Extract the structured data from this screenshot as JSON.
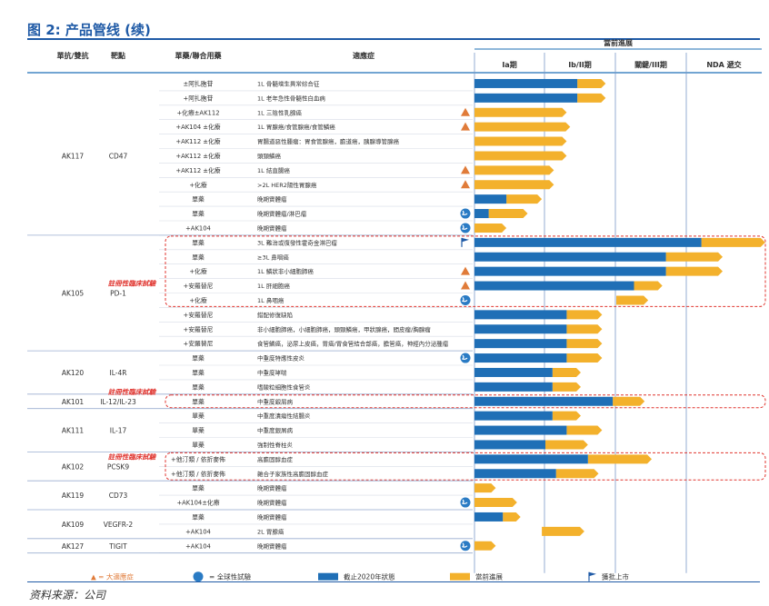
{
  "title": "图 2: 产品管线 (续)",
  "source": "资料来源：公司",
  "headers": {
    "antibody": "單抗/雙抗",
    "target": "靶點",
    "combo": "單藥/聯合用藥",
    "indication": "適應症",
    "progress": "當前進展",
    "phases": [
      "Ia期",
      "Ib/II期",
      "關鍵/III期",
      "NDA 遞交"
    ]
  },
  "highlight_label": "註冊性臨床試驗",
  "legend": {
    "fast_track": "▲ = 大適應症",
    "global": "= 全球性試驗",
    "status_2020": "截止2020年狀態",
    "current": "當前進展",
    "approved": "獲批上市"
  },
  "colors": {
    "blue": "#1f6fb6",
    "orange": "#f3b12c",
    "tri": "#e07b39",
    "highlight": "#e0352f"
  },
  "groups": [
    {
      "antibody": "AK117",
      "target": "CD47",
      "rows": [
        {
          "combo": "±阿扎胞苷",
          "ind": "1L 骨髓增生異常綜合征",
          "blue": 1.45,
          "orange": 1.85
        },
        {
          "combo": "+阿扎胞苷",
          "ind": "1L 老年急性骨髓性白血病",
          "blue": 1.45,
          "orange": 1.85
        },
        {
          "combo": "+化療±AK112",
          "ind": "1L 三陰性乳腺癌",
          "blue": 0,
          "orange": 1.3,
          "tri": true
        },
        {
          "combo": "+AK104 ±化療",
          "ind": "1L 胃腺癌/食管腺癌/食管鱗癌",
          "blue": 0,
          "orange": 1.35,
          "tri": true
        },
        {
          "combo": "+AK112 ±化療",
          "ind": "胃腸道惡性腫瘤：胃食管腺癌，膽道癌，胰腺導管腺癌",
          "blue": 0,
          "orange": 1.3
        },
        {
          "combo": "+AK112 ±化療",
          "ind": "頭頸鱗癌",
          "blue": 0,
          "orange": 1.3
        },
        {
          "combo": "+AK112 ±化療",
          "ind": "1L 結直腸癌",
          "blue": 0,
          "orange": 1.12,
          "tri": true
        },
        {
          "combo": "+化療",
          "ind": ">2L HER2陽性胃腺癌",
          "blue": 0,
          "orange": 1.12,
          "tri": true
        },
        {
          "combo": "單藥",
          "ind": "晚期實體瘤",
          "blue": 0.45,
          "orange": 0.95
        },
        {
          "combo": "單藥",
          "ind": "晚期實體瘤/淋巴瘤",
          "blue": 0.2,
          "orange": 0.75,
          "global": true
        },
        {
          "combo": "+AK104",
          "ind": "晚期實體瘤",
          "blue": 0,
          "orange": 0.45,
          "global": true
        }
      ]
    },
    {
      "antibody": "AK105",
      "target": "PD-1",
      "highlight": true,
      "rows": [
        {
          "combo": "單藥",
          "ind": "3L 難治或復發性霍奇金淋巴瘤",
          "blue": 3.2,
          "orange": 4.1,
          "flag": true,
          "hl": true
        },
        {
          "combo": "單藥",
          "ind": "≥3L 鼻咽癌",
          "blue": 2.7,
          "orange": 3.5,
          "hl": true
        },
        {
          "combo": "+化療",
          "ind": "1L 鱗狀非小細胞肺癌",
          "blue": 2.7,
          "orange": 3.5,
          "tri": true,
          "hl": true
        },
        {
          "combo": "+安羅替尼",
          "ind": "1L 肝細胞癌",
          "blue": 2.25,
          "orange": 2.65,
          "tri": true,
          "hl": true
        },
        {
          "combo": "+化療",
          "ind": "1L 鼻咽癌",
          "blue": 0,
          "orange": 2.45,
          "ostart": 2.0,
          "global": true,
          "hl": true
        },
        {
          "combo": "+安羅替尼",
          "ind": "錯配修復缺陷",
          "blue": 1.3,
          "orange": 1.8
        },
        {
          "combo": "+安羅替尼",
          "ind": "非小細胞肺癌，小細胞肺癌，頭頸鱗癌，甲狀腺癌，間皮瘤/胸腺瘤",
          "blue": 1.3,
          "orange": 1.8
        },
        {
          "combo": "+安羅替尼",
          "ind": "食管鱗癌，泌尿上皮癌，胃癌/胃食管結合部癌，膽管癌，神經內分泌腫瘤",
          "blue": 1.3,
          "orange": 1.8
        }
      ]
    },
    {
      "antibody": "AK120",
      "target": "IL-4R",
      "rows": [
        {
          "combo": "單藥",
          "ind": "中重度特應性皮炎",
          "blue": 1.3,
          "orange": 1.8,
          "global": true
        },
        {
          "combo": "單藥",
          "ind": "中重度哮喘",
          "blue": 1.1,
          "orange": 1.5
        },
        {
          "combo": "單藥",
          "ind": "嗜酸粒細胞性食管炎",
          "blue": 1.1,
          "orange": 1.5
        }
      ]
    },
    {
      "antibody": "AK101",
      "target": "IL-12/IL-23",
      "highlight": true,
      "rows": [
        {
          "combo": "單藥",
          "ind": "中重度銀屑病",
          "blue": 1.95,
          "orange": 2.4,
          "hl": true
        }
      ]
    },
    {
      "antibody": "AK111",
      "target": "IL-17",
      "rows": [
        {
          "combo": "單藥",
          "ind": "中重度潰瘍性結腸炎",
          "blue": 1.1,
          "orange": 1.5
        },
        {
          "combo": "單藥",
          "ind": "中重度銀屑病",
          "blue": 1.3,
          "orange": 1.8
        },
        {
          "combo": "單藥",
          "ind": "強制性脊柱炎",
          "blue": 1.0,
          "orange": 1.6
        }
      ]
    },
    {
      "antibody": "AK102",
      "target": "PCSK9",
      "highlight": true,
      "rows": [
        {
          "combo": "+他汀類 / 依折麥佈",
          "ind": "高膽固醇血症",
          "blue": 1.6,
          "orange": 2.5,
          "hl": true
        },
        {
          "combo": "+他汀類 / 依折麥佈",
          "ind": "雜合子家族性高膽固醇血症",
          "blue": 1.15,
          "orange": 1.75,
          "hl": true
        }
      ]
    },
    {
      "antibody": "AK119",
      "target": "CD73",
      "rows": [
        {
          "combo": "單藥",
          "ind": "晚期實體瘤",
          "blue": 0,
          "orange": 0.3
        },
        {
          "combo": "+AK104±化療",
          "ind": "晚期實體瘤",
          "blue": 0,
          "orange": 0.6,
          "global": true
        }
      ]
    },
    {
      "antibody": "AK109",
      "target": "VEGFR-2",
      "rows": [
        {
          "combo": "單藥",
          "ind": "晚期實體瘤",
          "blue": 0.4,
          "orange": 0.65
        },
        {
          "combo": "+AK104",
          "ind": "2L 胃腺癌",
          "blue": 0,
          "orange": 1.55,
          "ostart": 0.95
        }
      ]
    },
    {
      "antibody": "AK127",
      "target": "TIGIT",
      "rows": [
        {
          "combo": "+AK104",
          "ind": "晚期實體瘤",
          "blue": 0,
          "orange": 0.3,
          "global": true
        }
      ]
    }
  ]
}
